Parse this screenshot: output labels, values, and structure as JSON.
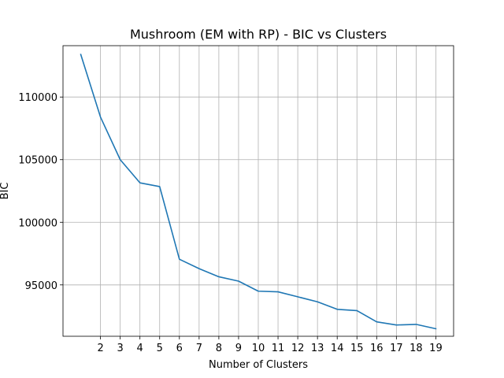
{
  "chart_data": {
    "type": "line",
    "title": "Mushroom (EM with RP) - BIC vs Clusters",
    "xlabel": "Number of Clusters",
    "ylabel": "BIC",
    "x": [
      1,
      2,
      3,
      4,
      5,
      6,
      7,
      8,
      9,
      10,
      11,
      12,
      13,
      14,
      15,
      16,
      17,
      18,
      19
    ],
    "xticks": [
      2,
      3,
      4,
      5,
      6,
      7,
      8,
      9,
      10,
      11,
      12,
      13,
      14,
      15,
      16,
      17,
      18,
      19
    ],
    "yticks": [
      95000,
      100000,
      105000,
      110000
    ],
    "xlim": [
      0.1,
      19.9
    ],
    "ylim": [
      90900,
      114100
    ],
    "grid": true,
    "series": [
      {
        "color": "#1f77b4",
        "values": [
          113400,
          108400,
          105000,
          103150,
          102850,
          97050,
          96300,
          95650,
          95300,
          94500,
          94450,
          94050,
          93650,
          93050,
          92950,
          92050,
          91800,
          91850,
          91500
        ]
      }
    ]
  }
}
